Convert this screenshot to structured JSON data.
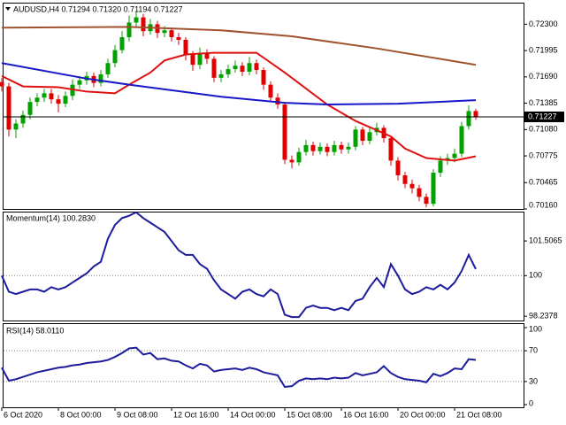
{
  "chart_data": [
    {
      "type": "candlestick",
      "title": "AUDUSD,H4  0.71294 0.71320 0.71194 0.71227",
      "categories": [
        "6 Oct 2020",
        null,
        null,
        null,
        null,
        null,
        null,
        null,
        "8 Oct 00:00",
        null,
        null,
        null,
        null,
        null,
        null,
        null,
        "9 Oct 08:00",
        null,
        null,
        null,
        null,
        null,
        null,
        null,
        "12 Oct 16:00",
        null,
        null,
        null,
        null,
        null,
        null,
        null,
        "14 Oct 00:00",
        null,
        null,
        null,
        null,
        null,
        null,
        null,
        "15 Oct 08:00",
        null,
        null,
        null,
        null,
        null,
        null,
        null,
        "16 Oct 16:00",
        null,
        null,
        null,
        null,
        null,
        null,
        null,
        "20 Oct 00:00",
        null,
        null,
        null,
        null,
        null,
        null,
        null,
        "21 Oct 08:00",
        null,
        null,
        null
      ],
      "open": [
        0.7163,
        0.7158,
        0.7108,
        0.7115,
        0.7125,
        0.714,
        0.7145,
        0.715,
        0.7143,
        0.7138,
        0.7147,
        0.716,
        0.7165,
        0.717,
        0.7162,
        0.7172,
        0.7185,
        0.72,
        0.7215,
        0.7232,
        0.7238,
        0.7222,
        0.723,
        0.722,
        0.7223,
        0.7215,
        0.7212,
        0.7195,
        0.7183,
        0.7197,
        0.719,
        0.7168,
        0.7172,
        0.7178,
        0.7182,
        0.7175,
        0.7185,
        0.7177,
        0.716,
        0.7145,
        0.7137,
        0.7073,
        0.707,
        0.7082,
        0.709,
        0.7083,
        0.7088,
        0.7082,
        0.709,
        0.7085,
        0.7088,
        0.7108,
        0.7095,
        0.7105,
        0.711,
        0.7098,
        0.7072,
        0.7055,
        0.7045,
        0.704,
        0.703,
        0.7022,
        0.7058,
        0.7072,
        0.7075,
        0.708,
        0.7112,
        0.71294
      ],
      "high": [
        0.7168,
        0.7162,
        0.712,
        0.713,
        0.7145,
        0.715,
        0.7155,
        0.7155,
        0.7148,
        0.7152,
        0.7166,
        0.717,
        0.7175,
        0.7174,
        0.7177,
        0.719,
        0.7206,
        0.7222,
        0.724,
        0.7245,
        0.7242,
        0.7236,
        0.7234,
        0.7228,
        0.7226,
        0.722,
        0.7215,
        0.7199,
        0.7203,
        0.7201,
        0.7193,
        0.7177,
        0.7183,
        0.7188,
        0.7186,
        0.7192,
        0.7189,
        0.718,
        0.7164,
        0.715,
        0.714,
        0.7078,
        0.7087,
        0.7096,
        0.7094,
        0.7093,
        0.7092,
        0.7095,
        0.7094,
        0.7093,
        0.7112,
        0.7111,
        0.711,
        0.7116,
        0.7113,
        0.7101,
        0.7076,
        0.7059,
        0.705,
        0.7044,
        0.7034,
        0.7062,
        0.7077,
        0.708,
        0.7086,
        0.7117,
        0.7136,
        0.7132
      ],
      "low": [
        0.7152,
        0.71,
        0.7098,
        0.711,
        0.712,
        0.7135,
        0.714,
        0.7138,
        0.7128,
        0.7134,
        0.7142,
        0.7155,
        0.716,
        0.7157,
        0.7158,
        0.7168,
        0.718,
        0.7196,
        0.721,
        0.7226,
        0.7216,
        0.7218,
        0.7214,
        0.7215,
        0.721,
        0.7206,
        0.7188,
        0.7176,
        0.7178,
        0.7184,
        0.7163,
        0.7163,
        0.7168,
        0.7174,
        0.717,
        0.7171,
        0.7172,
        0.7154,
        0.714,
        0.7132,
        0.7068,
        0.7063,
        0.7066,
        0.7078,
        0.7078,
        0.7079,
        0.7077,
        0.7078,
        0.708,
        0.708,
        0.7084,
        0.709,
        0.7091,
        0.7101,
        0.7093,
        0.7066,
        0.7049,
        0.704,
        0.7034,
        0.7025,
        0.7018,
        0.7019,
        0.7053,
        0.7067,
        0.707,
        0.7076,
        0.7108,
        0.71194
      ],
      "close": [
        0.7158,
        0.7108,
        0.7115,
        0.7125,
        0.714,
        0.7145,
        0.715,
        0.7143,
        0.7138,
        0.7147,
        0.716,
        0.7165,
        0.717,
        0.7162,
        0.7172,
        0.7185,
        0.72,
        0.7215,
        0.7232,
        0.7238,
        0.7222,
        0.723,
        0.722,
        0.7223,
        0.7215,
        0.7212,
        0.7195,
        0.7183,
        0.7197,
        0.719,
        0.7168,
        0.7172,
        0.7178,
        0.7182,
        0.7175,
        0.7185,
        0.7177,
        0.716,
        0.7145,
        0.7137,
        0.7073,
        0.707,
        0.7082,
        0.709,
        0.7083,
        0.7088,
        0.7082,
        0.709,
        0.7085,
        0.7088,
        0.7108,
        0.7095,
        0.7105,
        0.711,
        0.7098,
        0.7072,
        0.7055,
        0.7045,
        0.704,
        0.703,
        0.7022,
        0.7058,
        0.7072,
        0.7075,
        0.708,
        0.7112,
        0.71294,
        0.71227
      ],
      "up_color": "#00a000",
      "down_color": "#e00000",
      "current_price": 0.71227,
      "series": [
        {
          "color": "#e01010",
          "x": [
            0,
            3,
            8,
            12,
            16,
            18,
            21,
            23,
            26,
            30,
            36,
            40,
            46,
            50,
            55,
            57,
            60,
            64,
            67
          ],
          "values": [
            0.717,
            0.7158,
            0.7157,
            0.7152,
            0.715,
            0.716,
            0.7174,
            0.7188,
            0.7195,
            0.7197,
            0.7197,
            0.7174,
            0.7137,
            0.7118,
            0.71,
            0.7086,
            0.7075,
            0.7072,
            0.7077
          ]
        },
        {
          "color": "#1818c8",
          "x": [
            0,
            12,
            18,
            31,
            40,
            46,
            56,
            67
          ],
          "values": [
            0.7185,
            0.7167,
            0.716,
            0.7146,
            0.7139,
            0.7137,
            0.7138,
            0.7142
          ]
        },
        {
          "color": "#a0522d",
          "x": [
            0,
            18,
            31,
            41,
            53,
            67
          ],
          "values": [
            0.7226,
            0.7227,
            0.7223,
            0.7216,
            0.7202,
            0.7183
          ]
        }
      ],
      "ylim": [
        0.7016,
        0.7254
      ],
      "yticks": [
        {
          "value": 0.723,
          "label": "0.72300"
        },
        0.71995,
        {
          "value": 0.7169,
          "label": "0.71690"
        },
        0.71385,
        {
          "value": 0.7108,
          "label": "0.71080"
        },
        0.70775,
        0.70465,
        {
          "value": 0.7016,
          "label": "0.70160"
        }
      ]
    },
    {
      "type": "line",
      "title": "Momentum(14) 100.2830",
      "color": "#1c1c9c",
      "values": [
        100.0,
        99.3,
        99.2,
        99.3,
        99.4,
        99.4,
        99.3,
        99.5,
        99.4,
        99.5,
        99.7,
        99.9,
        100.1,
        100.4,
        100.6,
        101.6,
        102.2,
        102.5,
        102.6,
        102.75,
        102.5,
        102.3,
        102.1,
        101.9,
        101.5,
        101.1,
        100.9,
        100.9,
        100.5,
        100.3,
        99.8,
        99.4,
        99.2,
        99.0,
        99.3,
        99.4,
        99.2,
        99.1,
        99.4,
        99.2,
        98.3,
        98.2,
        98.2,
        98.6,
        98.7,
        98.6,
        98.6,
        98.5,
        98.6,
        98.5,
        98.9,
        99.0,
        99.5,
        99.9,
        99.5,
        100.5,
        100.0,
        99.4,
        99.2,
        99.3,
        99.5,
        99.4,
        99.6,
        99.4,
        99.7,
        100.2,
        100.9,
        100.283
      ],
      "levels": [
        100
      ],
      "ylim": [
        98.05,
        102.78
      ],
      "yticks": [
        101.5065,
        100,
        98.2378
      ]
    },
    {
      "type": "line",
      "title": "RSI(14) 58.0110",
      "color": "#1c1c9c",
      "values": [
        48,
        31,
        33,
        36,
        39,
        42,
        44,
        46,
        48,
        49,
        51,
        52,
        54,
        55,
        56,
        58,
        62,
        67,
        73,
        74,
        65,
        67,
        59,
        60,
        57,
        56,
        51,
        47,
        53,
        51,
        43,
        45,
        46,
        47,
        45,
        48,
        46,
        42,
        40,
        38,
        23,
        24,
        31,
        34,
        33,
        34,
        33,
        35,
        34,
        35,
        41,
        38,
        40,
        42,
        50,
        41,
        36,
        33,
        32,
        31,
        29,
        40,
        37,
        41,
        47,
        46,
        59,
        58.011
      ],
      "levels": [
        70,
        30
      ],
      "ylim": [
        0,
        100
      ],
      "yticks": [
        100,
        70,
        30,
        0
      ]
    }
  ]
}
